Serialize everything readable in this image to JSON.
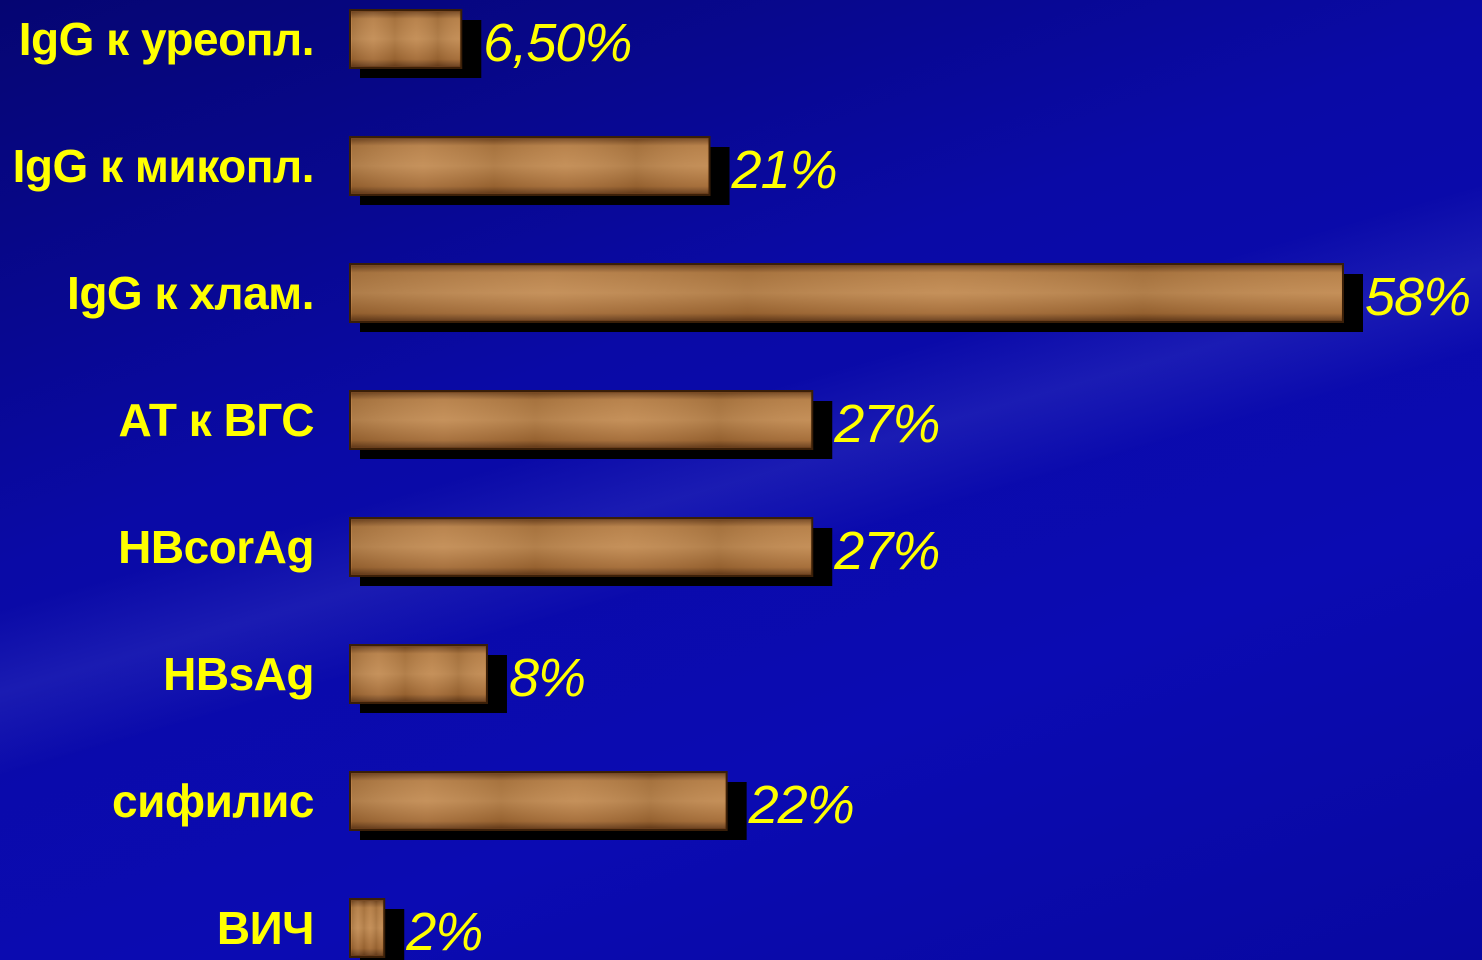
{
  "chart_data": {
    "type": "bar",
    "orientation": "horizontal",
    "categories": [
      "IgG к уреопл.",
      "IgG к микопл.",
      "IgG к хлам.",
      "АТ к ВГС",
      "HBcorAg",
      "HBsAg",
      "сифилис",
      "ВИЧ"
    ],
    "values": [
      6.5,
      21,
      58,
      27,
      27,
      8,
      22,
      2
    ],
    "value_labels": [
      "6,50%",
      "21%",
      "58%",
      "27%",
      "27%",
      "8%",
      "22%",
      "2%"
    ],
    "xlim": [
      0,
      58
    ],
    "grid": false,
    "legend": "none"
  },
  "colors": {
    "background": "#0a0aa6",
    "label_text": "#ffff00",
    "bar_fill": "#a9703a",
    "bar_shadow": "#000000"
  }
}
